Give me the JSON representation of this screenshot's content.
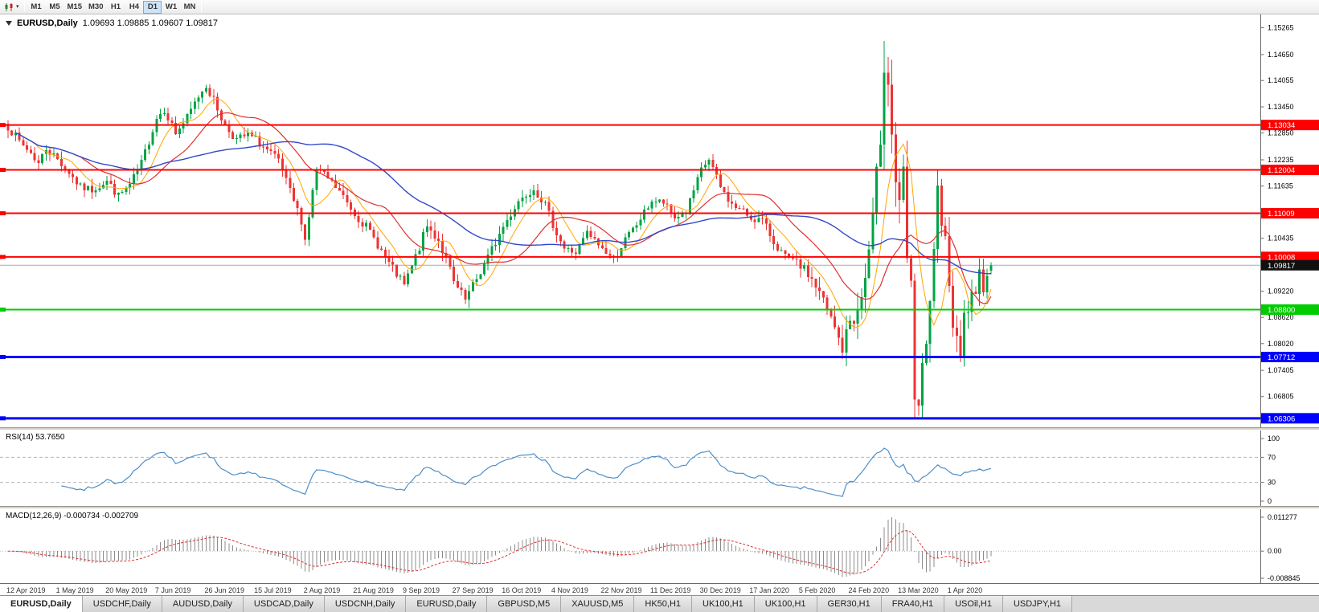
{
  "toolbar": {
    "timeframes": [
      "M1",
      "M5",
      "M15",
      "M30",
      "H1",
      "H4",
      "D1",
      "W1",
      "MN"
    ],
    "active_timeframe": "D1"
  },
  "chart": {
    "symbol_title": "EURUSD,Daily",
    "ohlc_text": "1.09693 1.09885 1.09607 1.09817",
    "open": "1.09693",
    "high": "1.09885",
    "low": "1.09607",
    "close": "1.09817",
    "price_axis_ticks": [
      "1.15265",
      "1.14650",
      "1.14055",
      "1.13450",
      "1.12850",
      "1.12235",
      "1.11635",
      "1.10435",
      "1.09220",
      "1.08620",
      "1.08020",
      "1.07405",
      "1.06805"
    ],
    "hlines": [
      {
        "price": 1.13034,
        "label": "1.13034",
        "color": "#FF0000",
        "width": 2
      },
      {
        "price": 1.12004,
        "label": "1.12004",
        "color": "#FF0000",
        "width": 2
      },
      {
        "price": 1.11009,
        "label": "1.11009",
        "color": "#FF0000",
        "width": 2
      },
      {
        "price": 1.10008,
        "label": "1.10008",
        "color": "#FF0000",
        "width": 2
      },
      {
        "price": 1.088,
        "label": "1.08800",
        "color": "#00CC00",
        "width": 2
      },
      {
        "price": 1.07712,
        "label": "1.07712",
        "color": "#0000FF",
        "width": 3
      },
      {
        "price": 1.06306,
        "label": "1.06306",
        "color": "#0000FF",
        "width": 3
      }
    ],
    "current_price": {
      "label": "1.09817",
      "price": 1.09817,
      "line_color": "#ABABAB",
      "label_bg": "#101010"
    },
    "dates": [
      "12 Apr 2019",
      "1 May 2019",
      "20 May 2019",
      "7 Jun 2019",
      "26 Jun 2019",
      "15 Jul 2019",
      "2 Aug 2019",
      "21 Aug 2019",
      "9 Sep 2019",
      "27 Sep 2019",
      "16 Oct 2019",
      "4 Nov 2019",
      "22 Nov 2019",
      "11 Dec 2019",
      "30 Dec 2019",
      "17 Jan 2020",
      "5 Feb 2020",
      "24 Feb 2020",
      "13 Mar 2020",
      "1 Apr 2020"
    ]
  },
  "rsi": {
    "label_text": "RSI(14) 53.7650",
    "period": 14,
    "value": "53.7650",
    "axis_labels": [
      "100",
      "70",
      "30",
      "0"
    ],
    "line_color": "#4D8FCB"
  },
  "macd": {
    "label_text": "MACD(12,26,9) -0.000734 -0.002709",
    "params": "12,26,9",
    "macd_value": "-0.000734",
    "signal_value": "-0.002709",
    "axis_top_label": "0.011277",
    "axis_zero_label": "0.00",
    "axis_bottom_label": "-0.008845",
    "histogram_color": "#8C8C8C",
    "signal_color": "#E03030"
  },
  "tabs": [
    {
      "label": "EURUSD,Daily",
      "active": true
    },
    {
      "label": "USDCHF,Daily"
    },
    {
      "label": "AUDUSD,Daily"
    },
    {
      "label": "USDCAD,Daily"
    },
    {
      "label": "USDCNH,Daily"
    },
    {
      "label": "EURUSD,Daily"
    },
    {
      "label": "GBPUSD,M5"
    },
    {
      "label": "XAUUSD,M5"
    },
    {
      "label": "HK50,H1"
    },
    {
      "label": "UK100,H1"
    },
    {
      "label": "UK100,H1"
    },
    {
      "label": "GER30,H1"
    },
    {
      "label": "FRA40,H1"
    },
    {
      "label": "USOil,H1"
    },
    {
      "label": "USDJPY,H1"
    }
  ],
  "chart_data": {
    "type": "candlestick",
    "symbol": "EURUSD",
    "timeframe": "Daily",
    "x_range": [
      "12 Apr 2019",
      "17 Apr 2020"
    ],
    "price_range_visible": [
      1.061,
      1.1557
    ],
    "bars": 259,
    "seed": 7,
    "colors": {
      "up": "#00A344",
      "down": "#EE3333",
      "ma_fast": "#FFA500",
      "ma_mid": "#E03030",
      "ma_slow": "#3348C8"
    },
    "moving_averages": [
      {
        "period": 8,
        "color_key": "ma_fast"
      },
      {
        "period": 20,
        "color_key": "ma_mid"
      },
      {
        "period": 50,
        "color_key": "ma_slow"
      }
    ],
    "close_anchors": [
      [
        0,
        1.13
      ],
      [
        3,
        1.1265
      ],
      [
        6,
        1.124
      ],
      [
        8,
        1.1215
      ],
      [
        10,
        1.125
      ],
      [
        13,
        1.1225
      ],
      [
        16,
        1.1195
      ],
      [
        19,
        1.116
      ],
      [
        22,
        1.1155
      ],
      [
        26,
        1.1175
      ],
      [
        29,
        1.114
      ],
      [
        32,
        1.1165
      ],
      [
        35,
        1.1215
      ],
      [
        39,
        1.132
      ],
      [
        41,
        1.134
      ],
      [
        44,
        1.1285
      ],
      [
        47,
        1.132
      ],
      [
        50,
        1.137
      ],
      [
        52,
        1.1395
      ],
      [
        54,
        1.136
      ],
      [
        57,
        1.13
      ],
      [
        60,
        1.127
      ],
      [
        63,
        1.128
      ],
      [
        65,
        1.127
      ],
      [
        68,
        1.1245
      ],
      [
        71,
        1.122
      ],
      [
        74,
        1.115
      ],
      [
        77,
        1.1085
      ],
      [
        78,
        1.104
      ],
      [
        80,
        1.115
      ],
      [
        81,
        1.12
      ],
      [
        84,
        1.118
      ],
      [
        87,
        1.115
      ],
      [
        91,
        1.11
      ],
      [
        94,
        1.107
      ],
      [
        97,
        1.103
      ],
      [
        100,
        1.0985
      ],
      [
        104,
        1.0935
      ],
      [
        107,
        1.1
      ],
      [
        110,
        1.107
      ],
      [
        113,
        1.104
      ],
      [
        116,
        1.097
      ],
      [
        117,
        1.094
      ],
      [
        120,
        1.09
      ],
      [
        123,
        1.095
      ],
      [
        126,
        1.1
      ],
      [
        130,
        1.107
      ],
      [
        134,
        1.113
      ],
      [
        138,
        1.116
      ],
      [
        141,
        1.112
      ],
      [
        143,
        1.1075
      ],
      [
        146,
        1.102
      ],
      [
        149,
        1.101
      ],
      [
        152,
        1.1055
      ],
      [
        156,
        1.102
      ],
      [
        159,
        1.0995
      ],
      [
        162,
        1.104
      ],
      [
        165,
        1.1075
      ],
      [
        169,
        1.113
      ],
      [
        172,
        1.1125
      ],
      [
        175,
        1.109
      ],
      [
        178,
        1.1105
      ],
      [
        182,
        1.12
      ],
      [
        184,
        1.1225
      ],
      [
        187,
        1.116
      ],
      [
        190,
        1.112
      ],
      [
        193,
        1.1105
      ],
      [
        195,
        1.109
      ],
      [
        198,
        1.1085
      ],
      [
        201,
        1.1035
      ],
      [
        204,
        1.1
      ],
      [
        208,
        1.098
      ],
      [
        211,
        1.095
      ],
      [
        214,
        1.09
      ],
      [
        217,
        1.0835
      ],
      [
        219,
        1.079
      ],
      [
        221,
        1.0855
      ],
      [
        223,
        1.087
      ],
      [
        225,
        1.095
      ],
      [
        227,
        1.108
      ],
      [
        229,
        1.128
      ],
      [
        230,
        1.145
      ],
      [
        231,
        1.141
      ],
      [
        232,
        1.128
      ],
      [
        233,
        1.118
      ],
      [
        234,
        1.11
      ],
      [
        235,
        1.118
      ],
      [
        236,
        1.0995
      ],
      [
        237,
        1.0915
      ],
      [
        238,
        1.069
      ],
      [
        239,
        1.066
      ],
      [
        240,
        1.0727
      ],
      [
        241,
        1.079
      ],
      [
        242,
        1.088
      ],
      [
        243,
        1.103
      ],
      [
        244,
        1.114
      ],
      [
        245,
        1.1045
      ],
      [
        246,
        1.103
      ],
      [
        247,
        1.096
      ],
      [
        248,
        1.0855
      ],
      [
        249,
        1.0808
      ],
      [
        250,
        1.079
      ],
      [
        251,
        1.089
      ],
      [
        252,
        1.0858
      ],
      [
        253,
        1.093
      ],
      [
        254,
        1.0913
      ],
      [
        255,
        1.098
      ],
      [
        256,
        1.091
      ],
      [
        257,
        1.095
      ],
      [
        258,
        1.0982
      ]
    ],
    "volatility_anchors": [
      [
        0,
        0.0035
      ],
      [
        90,
        0.0035
      ],
      [
        120,
        0.0042
      ],
      [
        150,
        0.0032
      ],
      [
        180,
        0.003
      ],
      [
        205,
        0.0036
      ],
      [
        215,
        0.0055
      ],
      [
        222,
        0.0075
      ],
      [
        228,
        0.011
      ],
      [
        232,
        0.013
      ],
      [
        236,
        0.0145
      ],
      [
        242,
        0.012
      ],
      [
        248,
        0.009
      ],
      [
        253,
        0.007
      ],
      [
        258,
        0.0055
      ]
    ],
    "last_candle": {
      "open": 1.09693,
      "high": 1.09885,
      "low": 1.09607,
      "close": 1.09817
    }
  }
}
